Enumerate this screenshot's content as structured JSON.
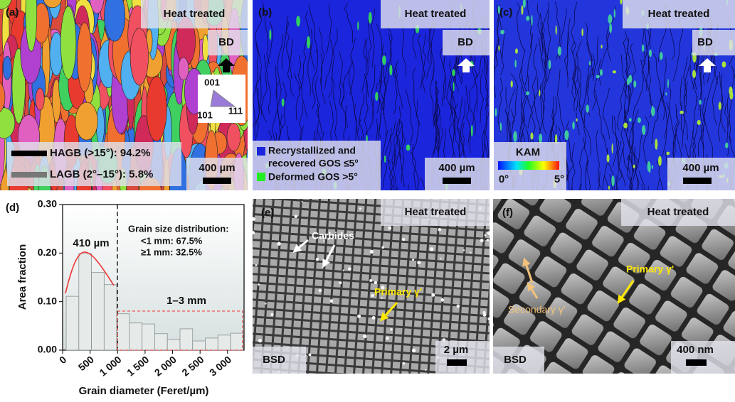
{
  "panel_a": {
    "label": "(a)",
    "badge": "Heat treated",
    "direction": "BD",
    "ipf": [
      "001",
      "101",
      "111"
    ],
    "legend": [
      "HAGB (>15°): 94.2%",
      "LAGB (2°–15°): 5.8%"
    ],
    "scale_bar": "400 µm"
  },
  "panel_b": {
    "label": "(b)",
    "badge": "Heat treated",
    "direction": "BD",
    "legend": [
      "Recrystallized and",
      "recovered GOS ≤5°",
      "Deformed GOS >5°"
    ],
    "scale_bar": "400 µm"
  },
  "panel_c": {
    "label": "(c)",
    "badge": "Heat treated",
    "direction": "BD",
    "legend_title": "KAM",
    "legend_min": "0°",
    "legend_max": "5°",
    "scale_bar": "400 µm"
  },
  "chart_data": {
    "type": "histogram",
    "xlabel": "Grain diameter (Feret/µm)",
    "ylabel": "Area fraction",
    "bins": [
      65,
      295,
      525,
      755,
      985,
      1215,
      1445,
      1675,
      1905,
      2135,
      2365,
      2595,
      2825,
      3055,
      3285
    ],
    "values": [
      0.111,
      0.199,
      0.16,
      0.135,
      0.075,
      0.056,
      0.054,
      0.034,
      0.022,
      0.044,
      0.019,
      0.025,
      0.031,
      0.035
    ],
    "color": "#e6ebea",
    "xlim": [
      0,
      3300
    ],
    "ylim": [
      0,
      0.3
    ],
    "xticks": [
      0,
      500,
      {
        "value": 1000,
        "label": "1 000"
      },
      {
        "value": 1500,
        "label": "1 500"
      },
      {
        "value": 2000,
        "label": "2 000"
      },
      {
        "value": 2500,
        "label": "2 500"
      },
      {
        "value": 3000,
        "label": "3 000"
      }
    ],
    "yticks": [
      {
        "value": 0,
        "label": "0.00"
      },
      {
        "value": 0.1,
        "label": "0.10"
      },
      {
        "value": 0.2,
        "label": "0.20"
      },
      {
        "value": 0.3,
        "label": "0.30"
      }
    ],
    "annotations": {
      "label": "(d)",
      "peak": "410 µm",
      "distribution_title": "Grain size distribution:",
      "below_1mm": "<1 mm: 67.5%",
      "above_1mm": "≥1 mm: 32.5%",
      "range": "1–3 mm"
    }
  },
  "panel_e": {
    "label": "(e)",
    "badge": "Heat treated",
    "carbides": "Carbides",
    "primary": "Primary γ'",
    "detector": "BSD",
    "scale_bar": "2 µm"
  },
  "panel_f": {
    "label": "(f)",
    "badge": "Heat treated",
    "primary": "Primary γ'",
    "secondary": "Secondary γ'",
    "detector": "BSD",
    "scale_bar": "400 nm"
  }
}
